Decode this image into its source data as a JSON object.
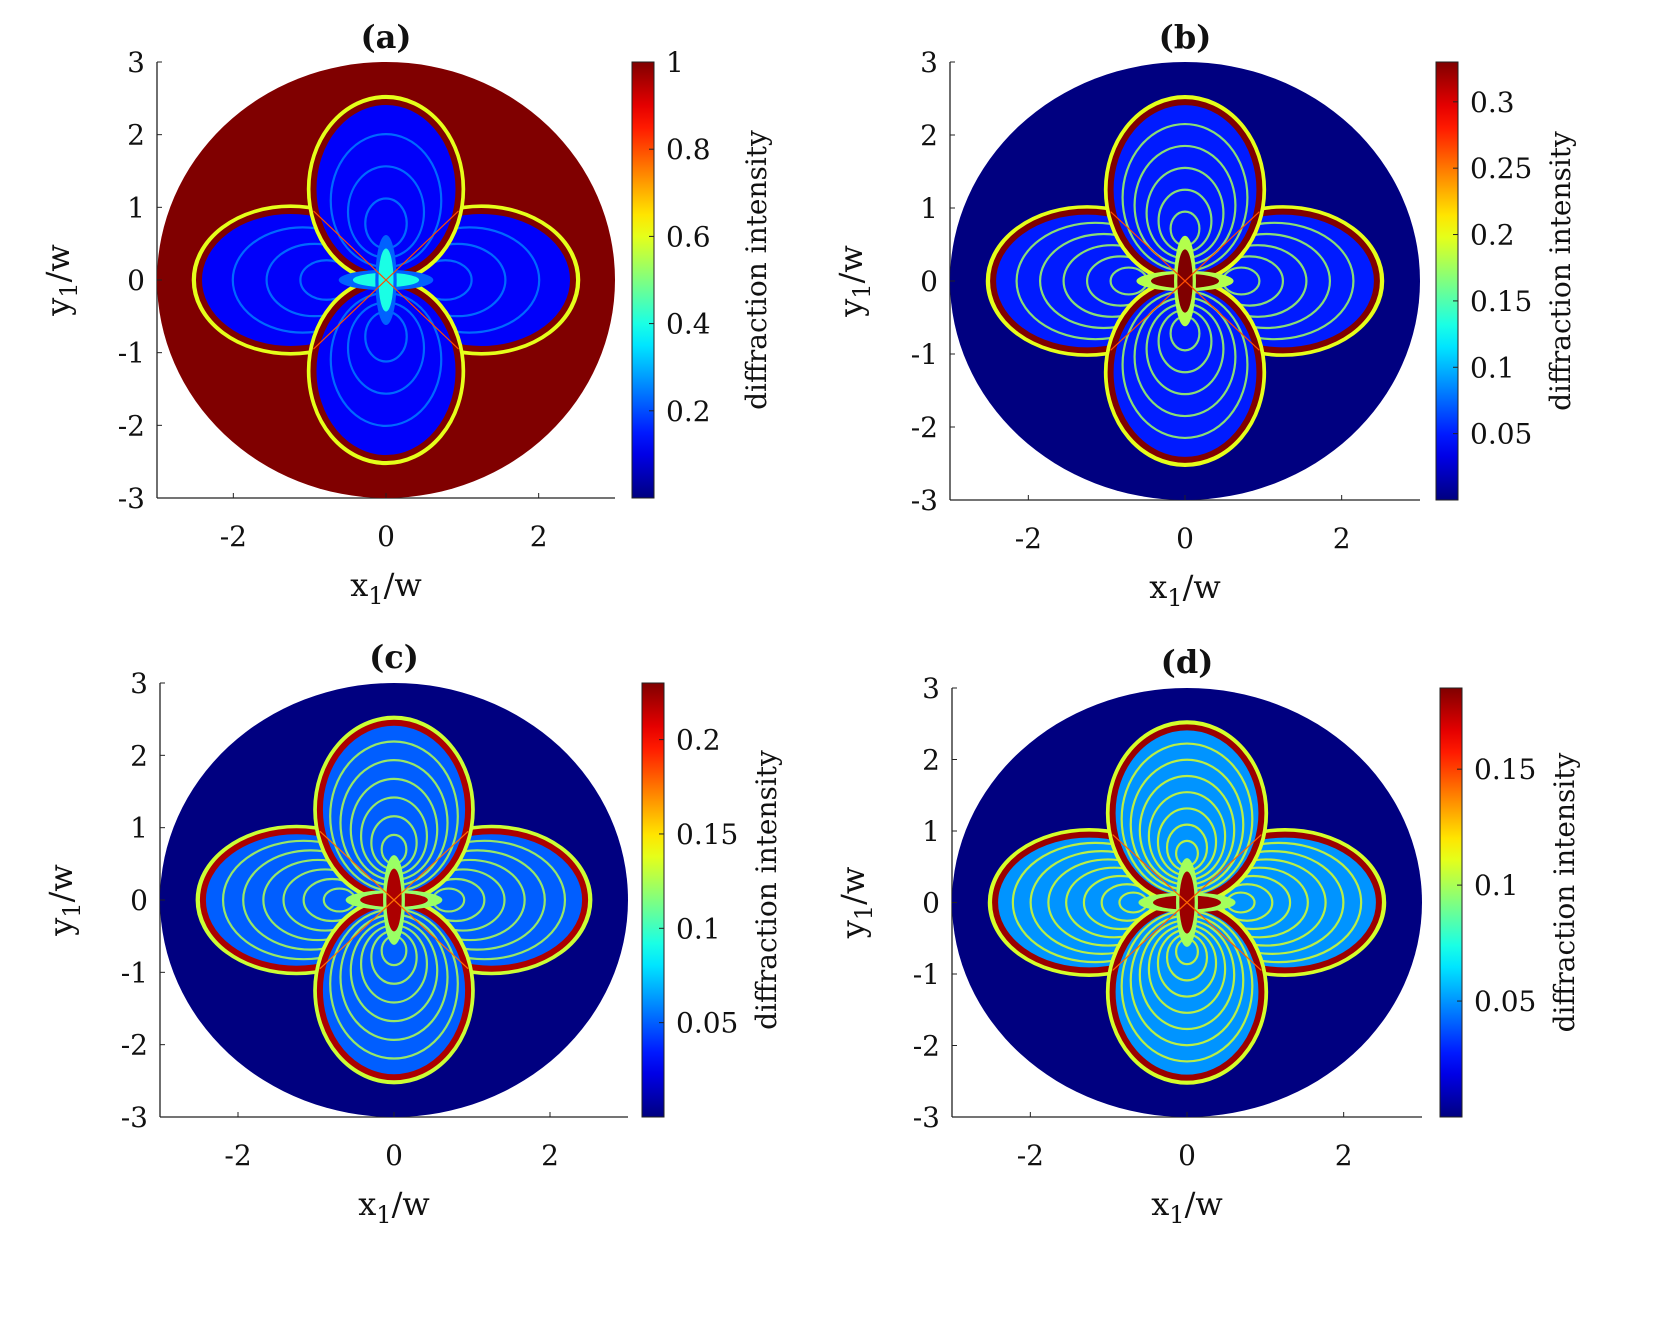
{
  "chart_data": [
    {
      "type": "heatmap",
      "panel": "a",
      "title": "(a)",
      "xlabel": "x_1/w",
      "ylabel": "y_1/w",
      "xlim": [
        -3,
        3
      ],
      "ylim": [
        -3,
        3
      ],
      "xticks": [
        -2,
        0,
        2
      ],
      "yticks": [
        3,
        2,
        1,
        0,
        -1,
        -2,
        -3
      ],
      "colorbar": {
        "label": "diffraction intensity",
        "min": 0,
        "max": 1,
        "ticks": [
          1,
          0.8,
          0.6,
          0.4,
          0.2
        ]
      },
      "pattern": {
        "aperture_radius": 3,
        "background_value": 1.0,
        "petal_inner_value": 0.12,
        "center_lobe_value": 0.4,
        "petal_edge_value": 1.0,
        "rings": 3
      },
      "colormap": "jet"
    },
    {
      "type": "heatmap",
      "panel": "b",
      "title": "(b)",
      "xlabel": "x_1/w",
      "ylabel": "y_1/w",
      "xlim": [
        -3,
        3
      ],
      "ylim": [
        -3,
        3
      ],
      "xticks": [
        -2,
        0,
        2
      ],
      "yticks": [
        3,
        2,
        1,
        0,
        -1,
        -2,
        -3
      ],
      "colorbar": {
        "label": "diffraction intensity",
        "min": 0,
        "max": 0.33,
        "ticks": [
          0.3,
          0.25,
          0.2,
          0.15,
          0.1,
          0.05
        ]
      },
      "pattern": {
        "aperture_radius": 3,
        "background_value": 0.0,
        "petal_inner_value": 0.05,
        "center_lobe_value": 0.33,
        "petal_edge_value": 0.33,
        "rings": 5
      },
      "colormap": "jet"
    },
    {
      "type": "heatmap",
      "panel": "c",
      "title": "(c)",
      "xlabel": "x_1/w",
      "ylabel": "y_1/w",
      "xlim": [
        -3,
        3
      ],
      "ylim": [
        -3,
        3
      ],
      "xticks": [
        -2,
        0,
        2
      ],
      "yticks": [
        3,
        2,
        1,
        0,
        -1,
        -2,
        -3
      ],
      "colorbar": {
        "label": "diffraction intensity",
        "min": 0,
        "max": 0.23,
        "ticks": [
          0.2,
          0.15,
          0.1,
          0.05
        ]
      },
      "pattern": {
        "aperture_radius": 3,
        "background_value": 0.0,
        "petal_inner_value": 0.05,
        "center_lobe_value": 0.22,
        "petal_edge_value": 0.22,
        "rings": 6
      },
      "colormap": "jet"
    },
    {
      "type": "heatmap",
      "panel": "d",
      "title": "(d)",
      "xlabel": "x_1/w",
      "ylabel": "y_1/w",
      "xlim": [
        -3,
        3
      ],
      "ylim": [
        -3,
        3
      ],
      "xticks": [
        -2,
        0,
        2
      ],
      "yticks": [
        3,
        2,
        1,
        0,
        -1,
        -2,
        -3
      ],
      "colorbar": {
        "label": "diffraction intensity",
        "min": 0,
        "max": 0.185,
        "ticks": [
          0.15,
          0.1,
          0.05
        ]
      },
      "pattern": {
        "aperture_radius": 3,
        "background_value": 0.0,
        "petal_inner_value": 0.05,
        "center_lobe_value": 0.18,
        "petal_edge_value": 0.18,
        "rings": 7
      },
      "colormap": "jet"
    }
  ]
}
